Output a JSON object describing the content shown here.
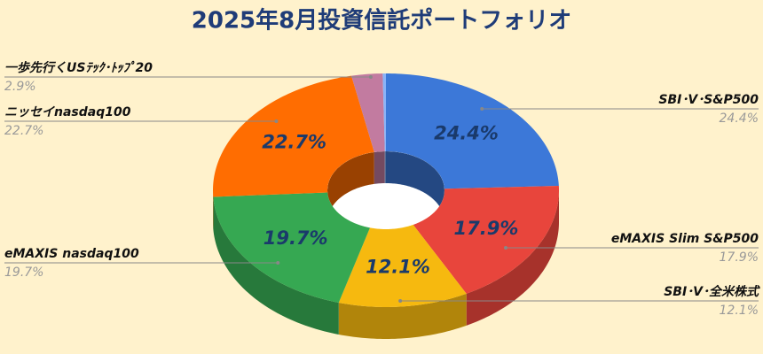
{
  "chart_data": {
    "type": "donut3d",
    "title": "2025年8月投資信託ポートフォリオ",
    "categories": [
      "SBI･V･S&P500",
      "eMAXIS Slim S&P500",
      "SBI･V･全米株式",
      "eMAXIS nasdaq100",
      "ニッセイnasdaq100",
      "一歩先行くUSﾃｯｸ･ﾄｯﾌﾟ20",
      null
    ],
    "values": [
      24.4,
      17.9,
      12.1,
      19.7,
      22.7,
      2.9,
      0.3
    ],
    "value_labels": [
      "24.4%",
      "17.9%",
      "12.1%",
      "19.7%",
      "22.7%",
      "2.9%",
      null
    ],
    "colors": [
      "#3c78d8",
      "#e8453c",
      "#f6b90f",
      "#36a852",
      "#ff6d01",
      "#c27ba0",
      "#8ab4f8"
    ]
  }
}
